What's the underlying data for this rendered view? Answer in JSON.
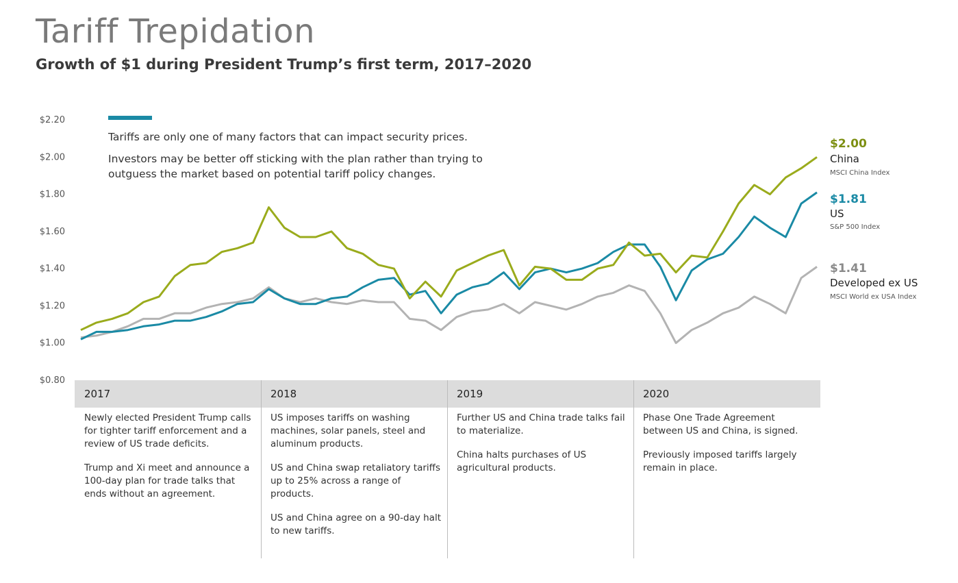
{
  "title": "Tariff Trepidation",
  "subtitle": "Growth of $1 during President Trump’s first term, 2017–2020",
  "notes": [
    "Tariffs are only one of many factors that can impact security prices.",
    "Investors may be better off sticking with the plan rather than trying to outguess the market based on potential tariff policy changes."
  ],
  "colors": {
    "china": "#9aab1c",
    "us": "#1a8aa5",
    "dev": "#b3b3b3",
    "note_bar": "#1a8aa5"
  },
  "chart_data": {
    "type": "line",
    "title": "Growth of $1 during President Trump’s first term, 2017–2020",
    "ylim": [
      0.8,
      2.2
    ],
    "yticks": [
      "$0.80",
      "$1.00",
      "$1.20",
      "$1.40",
      "$1.60",
      "$1.80",
      "$2.00",
      "$2.20"
    ],
    "ytick_values": [
      0.8,
      1.0,
      1.2,
      1.4,
      1.6,
      1.8,
      2.0,
      2.2
    ],
    "grid": false,
    "series": [
      {
        "key": "china",
        "name": "China",
        "index": "MSCI China Index",
        "end_label": "$2.00",
        "values": [
          1.07,
          1.11,
          1.13,
          1.16,
          1.22,
          1.25,
          1.36,
          1.42,
          1.43,
          1.49,
          1.51,
          1.54,
          1.73,
          1.62,
          1.57,
          1.57,
          1.6,
          1.51,
          1.48,
          1.42,
          1.4,
          1.24,
          1.33,
          1.25,
          1.39,
          1.43,
          1.47,
          1.5,
          1.31,
          1.41,
          1.4,
          1.34,
          1.34,
          1.4,
          1.42,
          1.54,
          1.47,
          1.48,
          1.38,
          1.47,
          1.46,
          1.6,
          1.75,
          1.85,
          1.8,
          1.89,
          1.94,
          2.0
        ]
      },
      {
        "key": "us",
        "name": "US",
        "index": "S&P 500 Index",
        "end_label": "$1.81",
        "values": [
          1.02,
          1.06,
          1.06,
          1.07,
          1.09,
          1.1,
          1.12,
          1.12,
          1.14,
          1.17,
          1.21,
          1.22,
          1.29,
          1.24,
          1.21,
          1.21,
          1.24,
          1.25,
          1.3,
          1.34,
          1.35,
          1.26,
          1.28,
          1.16,
          1.26,
          1.3,
          1.32,
          1.38,
          1.29,
          1.38,
          1.4,
          1.38,
          1.4,
          1.43,
          1.49,
          1.53,
          1.53,
          1.41,
          1.23,
          1.39,
          1.45,
          1.48,
          1.57,
          1.68,
          1.62,
          1.57,
          1.75,
          1.81
        ]
      },
      {
        "key": "dev",
        "name": "Developed ex US",
        "index": "MSCI World ex USA Index",
        "end_label": "$1.41",
        "values": [
          1.03,
          1.04,
          1.06,
          1.09,
          1.13,
          1.13,
          1.16,
          1.16,
          1.19,
          1.21,
          1.22,
          1.24,
          1.3,
          1.24,
          1.22,
          1.24,
          1.22,
          1.21,
          1.23,
          1.22,
          1.22,
          1.13,
          1.12,
          1.07,
          1.14,
          1.17,
          1.18,
          1.21,
          1.16,
          1.22,
          1.2,
          1.18,
          1.21,
          1.25,
          1.27,
          1.31,
          1.28,
          1.16,
          1.0,
          1.07,
          1.11,
          1.16,
          1.19,
          1.25,
          1.21,
          1.16,
          1.35,
          1.41
        ]
      }
    ]
  },
  "timeline": [
    {
      "year": "2017",
      "events": [
        "Newly elected President Trump calls for tighter tariff enforcement and a review of US trade deficits.",
        "Trump and Xi meet and announce a 100-day plan for trade talks that ends without an agreement."
      ]
    },
    {
      "year": "2018",
      "events": [
        "US imposes tariffs on washing machines, solar panels, steel and aluminum products.",
        "US and China swap retaliatory tariffs up to 25% across a range of products.",
        "US and China agree on a 90-day halt to new tariffs."
      ]
    },
    {
      "year": "2019",
      "events": [
        "Further US and China trade talks fail to materialize.",
        "China halts purchases of US agricultural products."
      ]
    },
    {
      "year": "2020",
      "events": [
        "Phase One Trade Agreement between US and China, is signed.",
        "Previously imposed tariffs largely remain in place."
      ]
    }
  ]
}
